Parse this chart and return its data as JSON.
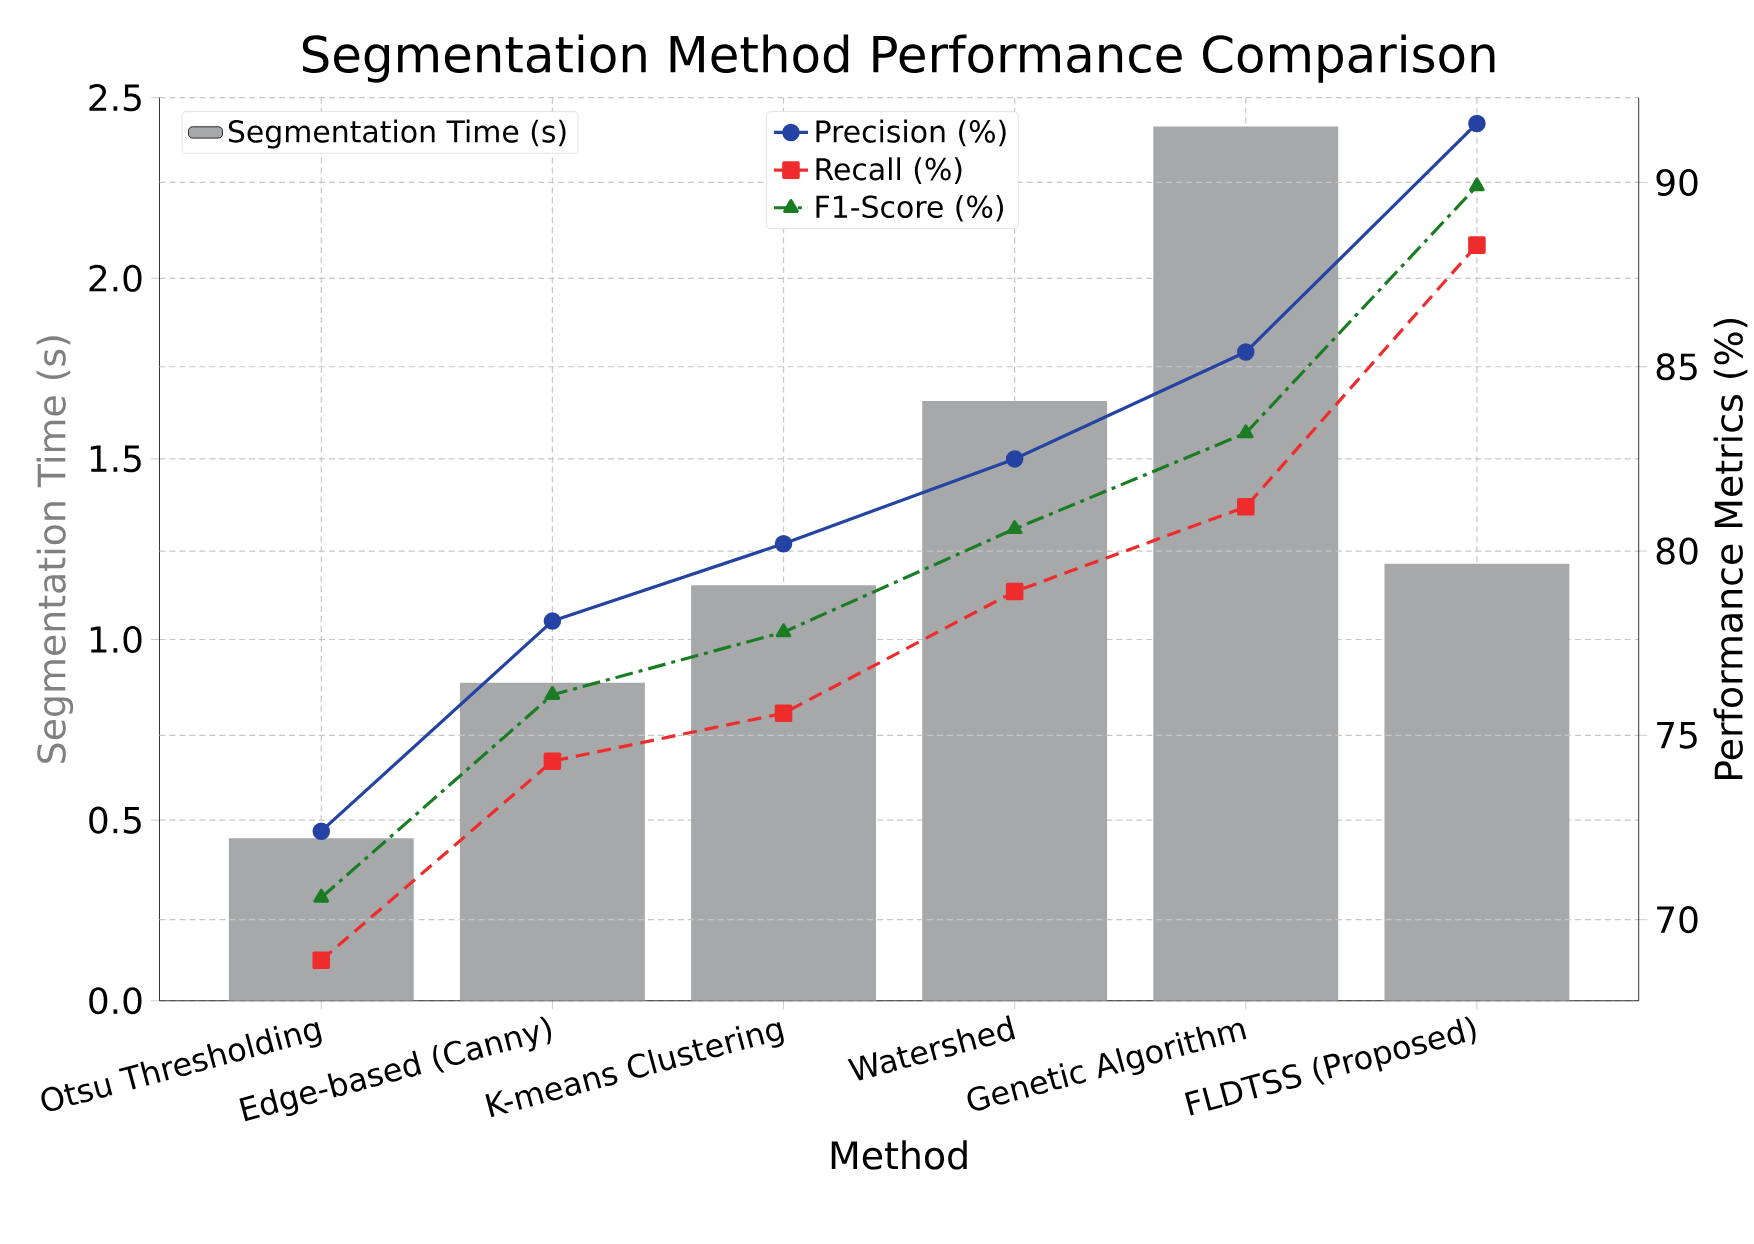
{
  "chart_data": {
    "type": "bar",
    "title": "Segmentation Method Performance Comparison",
    "xlabel": "Method",
    "ylabel": "Segmentation Time (s)",
    "y2label": "Performance Metrics (%)",
    "categories": [
      "Otsu Thresholding",
      "Edge-based (Canny)",
      "K-means Clustering",
      "Watershed",
      "Genetic Algorithm",
      "FLDTSS (Proposed)"
    ],
    "series": [
      {
        "name": "Segmentation Time (s)",
        "color": "#a6a8aa",
        "values": [
          0.45,
          0.88,
          1.15,
          1.66,
          2.42,
          1.21
        ]
      },
      {
        "name": "Precision (%)",
        "type": "line",
        "axis": "y2",
        "color": "#2443a3",
        "marker": "circle",
        "line_style": "solid",
        "values": [
          72.4,
          78.1,
          80.2,
          82.5,
          85.4,
          91.6
        ]
      },
      {
        "name": "Recall (%)",
        "type": "line",
        "axis": "y2",
        "color": "#ee2c2c",
        "marker": "square",
        "line_style": "dashed",
        "values": [
          68.9,
          74.3,
          75.6,
          78.9,
          81.2,
          88.3
        ]
      },
      {
        "name": "F1-Score (%)",
        "type": "line",
        "axis": "y2",
        "color": "#1b7d23",
        "marker": "triangle",
        "line_style": "dashdot",
        "values": [
          70.6,
          76.1,
          77.8,
          80.6,
          83.2,
          89.9
        ]
      }
    ],
    "ylim": [
      0,
      2.5
    ],
    "yticks": [
      {
        "value": 0,
        "label": "0.0"
      },
      0.5,
      {
        "value": 1,
        "label": "1.0"
      },
      1.5,
      {
        "value": 2,
        "label": "2.0"
      },
      2.5
    ],
    "y2lim": [
      67.8,
      92.3
    ],
    "y2ticks": [
      70,
      75,
      80,
      85,
      90
    ],
    "grid": true,
    "legend": "top"
  }
}
